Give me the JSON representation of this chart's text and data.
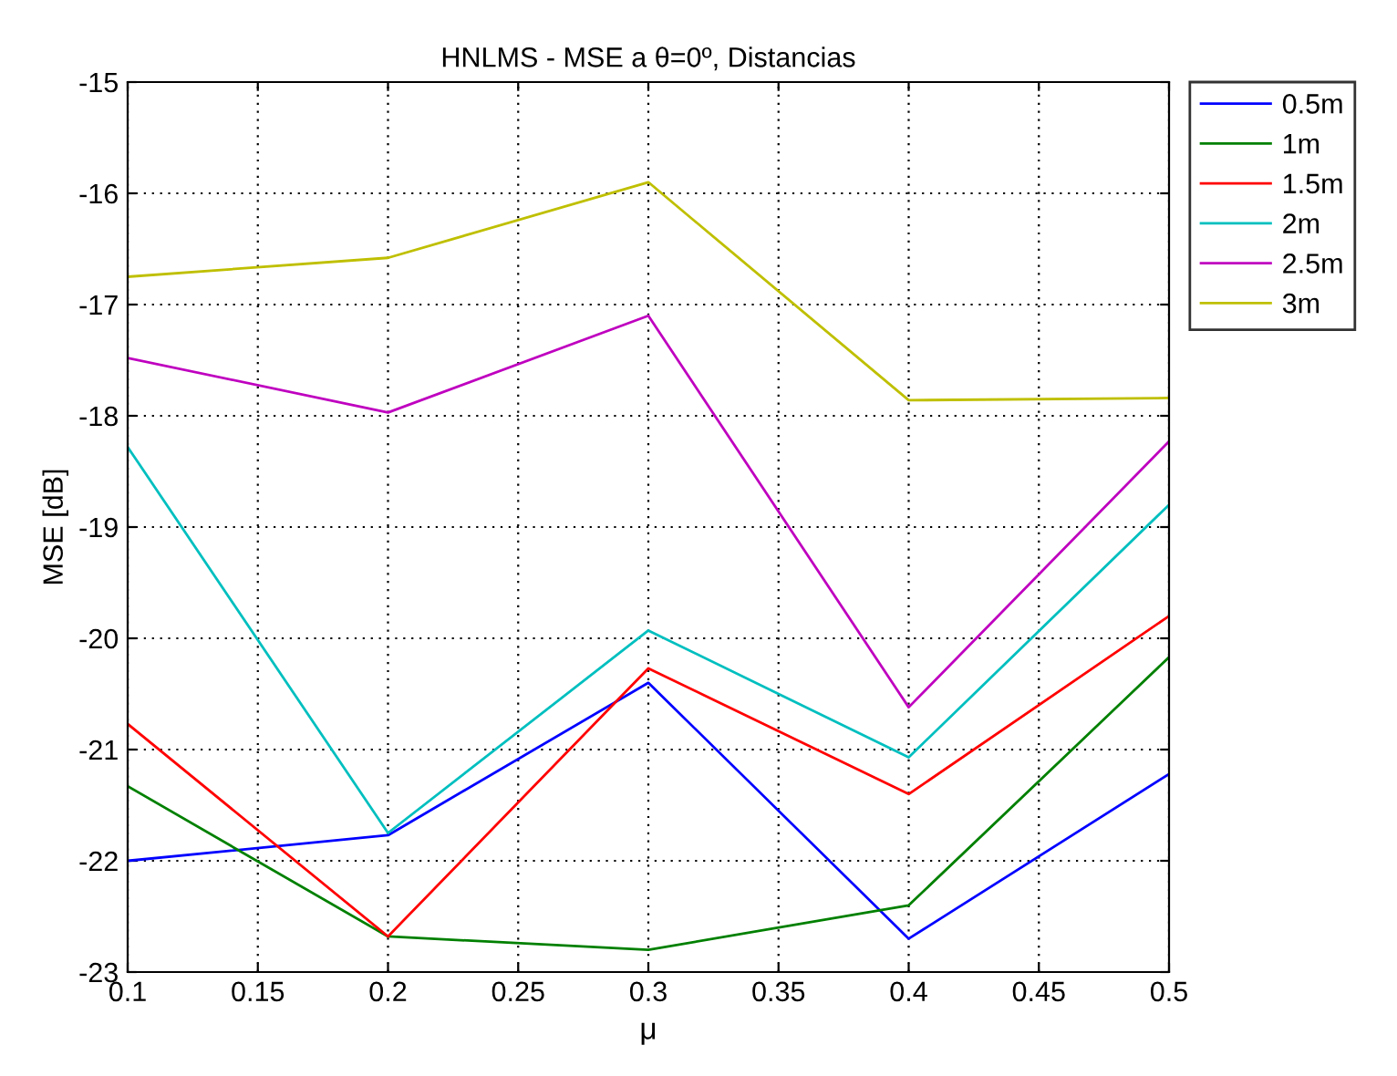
{
  "chart_data": {
    "type": "line",
    "title": "HNLMS - MSE a θ=0º, Distancias",
    "xlabel": "μ",
    "ylabel": "MSE [dB]",
    "x": [
      0.1,
      0.2,
      0.3,
      0.4,
      0.5
    ],
    "series": [
      {
        "name": "0.5m",
        "color": "#0000ff",
        "values": [
          -22.0,
          -21.77,
          -20.4,
          -22.7,
          -21.22
        ]
      },
      {
        "name": "1m",
        "color": "#008000",
        "values": [
          -21.33,
          -22.68,
          -22.8,
          -22.4,
          -20.17
        ]
      },
      {
        "name": "1.5m",
        "color": "#ff0000",
        "values": [
          -20.77,
          -22.68,
          -20.27,
          -21.4,
          -19.8
        ]
      },
      {
        "name": "2m",
        "color": "#00bfbf",
        "values": [
          -18.28,
          -21.75,
          -19.93,
          -21.07,
          -18.8
        ]
      },
      {
        "name": "2.5m",
        "color": "#bf00bf",
        "values": [
          -17.48,
          -17.97,
          -17.1,
          -20.62,
          -18.23
        ]
      },
      {
        "name": "3m",
        "color": "#bfbf00",
        "values": [
          -16.75,
          -16.58,
          -15.9,
          -17.86,
          -17.84
        ]
      }
    ],
    "xlim": [
      0.1,
      0.5
    ],
    "xticks": [
      0.1,
      0.15,
      0.2,
      0.25,
      0.3,
      0.35,
      0.4,
      0.45,
      0.5
    ],
    "ylim": [
      -23,
      -15
    ],
    "yticks": [
      -23,
      -22,
      -21,
      -20,
      -19,
      -18,
      -17,
      -16,
      -15
    ],
    "grid": true,
    "legend": "top right",
    "marker": "none",
    "line_style": "solid"
  }
}
